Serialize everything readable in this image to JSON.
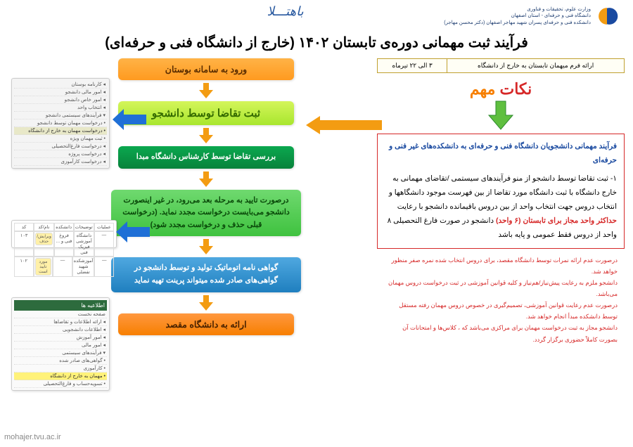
{
  "header": {
    "ministry_lines": [
      "وزارت علوم، تحقیقات و فناوری",
      "دانشگاه فنی و حرفه‌ای - استان اصفهان",
      "دانشکده فنی و حرفه‌ای پسران شهید مهاجر اصفهان (دکتر محسن مهاجر)"
    ],
    "center_logo_text": "باهتـــلا"
  },
  "title": "فرآیند ثبت مهمانی دوره‌ی تابستان ۱۴۰۲ (خارج از دانشگاه فنی و حرفه‌ای)",
  "form_table": {
    "col1": "ارائه فرم میهمان تابستان به خارج از دانشگاه",
    "col2": "۳ الی ۲۲ تیرماه"
  },
  "notes_title": {
    "part1": "نکات",
    "part2": " مهم"
  },
  "notes_box": {
    "subhead": "فرآیند مهمانی دانشجویان دانشگاه فنی و حرفه‌ای به دانشکده‌های غیر فنی و حرفه‌ای",
    "p1_a": "۱- ثبت تقاضا توسط دانشجو از منو فرآیندهای سیستمی /تقاضای مهمانی به خارج دانشگاه با ثبت دانشگاه مورد تقاضا از بین فهرست موجود دانشگاهها و انتخاب دروس جهت انتخاب واحد از بین دروس باقیمانده دانشجو با رعایت ",
    "p1_hl": "حداکثر واحد مجاز برای تابستان (۶ واحد)",
    "p1_b": " دانشجو در صورت فارغ التحصیلی ۸ واحد از دروس فقط عمومی و پایه باشد"
  },
  "footnotes": [
    "درصورت عدم ارائه نمرات توسط دانشگاه مقصد، برای دروس انتخاب شده نمره صفر منظور خواهد شد.",
    "دانشجو ملزم به رعایت پیش‌نیاز/هم‌نیاز و کلیه قوانین آموزشی در ثبت درخواست دروس مهمان می‌باشد.",
    "درصورت عدم رعایت قوانین آموزشی، تصمیم‌گیری در خصوص دروس مهمان رفته مستقل توسط دانشکده مبدأ انجام خواهد شد.",
    "دانشجو مجاز به ثبت درخواست مهمان برای مراکزی می‌باشد که ، کلاس‌ها و امتحانات آن بصورت کاملاً حضوری برگزار گردد."
  ],
  "flow": {
    "s1": "ورود به سامانه بوستان",
    "s2": "ثبت تقاضا توسط دانشجو",
    "s3": "بررسی تقاضا توسط کارشناس دانشگاه مبدا",
    "s4": "درصورت تایید به مرحله بعد می‌رود، در غیر اینصورت دانشجو می‌بایست درخواست مجدد نماید. (درخواست قبلی حذف و درخواست مجدد شود)",
    "s5": "گواهی نامه اتوماتیک تولید و توسط دانشجو در گواهی‌های صادر شده میتواند پرینت تهیه نماید",
    "s6": "ارائه به دانشگاه مقصد"
  },
  "shots": {
    "shot1_rows": [
      "◂ کارنامه بوستان",
      "◂ امور مالی دانشجو",
      "◂ امور خاص دانشجو",
      "◂ انتخاب واحد",
      "▾ فرآیندهای سیستمی دانشجو",
      "   • درخواست مهمان توسط دانشجو",
      "   • درخواست مهمان به خارج از دانشگاه",
      "   • ثبت مهمان ویژه",
      "◂ درخواست فارغ‌التحصیلی",
      "◂ درخواست پروژه",
      "◂ درخواست کارآموزی"
    ],
    "shot1_hl_index": 6,
    "shot2_cols": [
      "عملیات",
      "توضیحات",
      "دانشکده",
      "نام/کد",
      "کد"
    ],
    "shot2_r1": [
      "—",
      "دانشگاه آموزشی فیزیک فنی",
      "فروغ فنی و ...",
      "ویرایش/حذف",
      "۱۰۳"
    ],
    "shot2_r2": [
      "—",
      "آموزشکده شهید تفضلی",
      "—",
      "مورد تایید است",
      "۱۰۲"
    ],
    "shot3_header": "اطلاعیه ها",
    "shot3_rows": [
      "صفحه نخست",
      "◂ ارائه اطلاعات و تقاضاها",
      "◂ اطلاعات دانشجویی",
      "◂ امور آموزش",
      "◂ امور مالی",
      "▾ فرآیندهای سیستمی",
      "   • گواهی‌های صادر شده",
      "   • کارآموزی",
      "   • مهمان به خارج از دانشگاه",
      "   • تسویه‌حساب و فارغ‌التحصیلی"
    ],
    "shot3_hl_index": 8
  },
  "watermark": "mohajer.tvu.ac.ir",
  "colors": {
    "arrow_orange": "#f39c12",
    "arrow_blue": "#1f6fd6",
    "arrow_green": "#5fbf3f"
  }
}
